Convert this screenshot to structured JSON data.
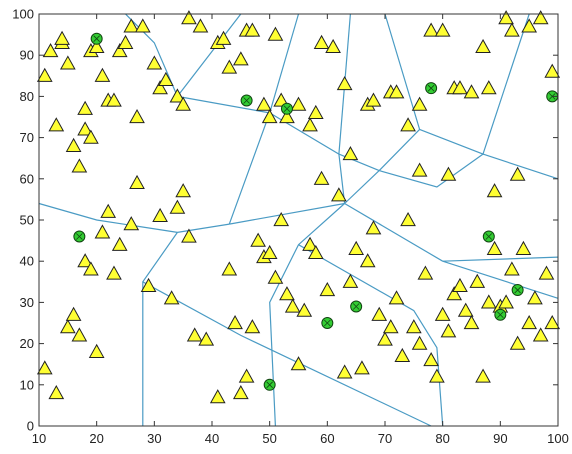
{
  "chart_data": {
    "type": "scatter",
    "xlim": [
      10,
      100
    ],
    "ylim": [
      0,
      100
    ],
    "x_ticks": [
      "10",
      "20",
      "30",
      "40",
      "50",
      "60",
      "70",
      "80",
      "90",
      "100"
    ],
    "y_ticks": [
      "0",
      "10",
      "20",
      "30",
      "40",
      "50",
      "60",
      "70",
      "80",
      "90",
      "100"
    ],
    "grid": false,
    "colors": {
      "triangle_fill": "#ffff33",
      "triangle_edge": "#222222",
      "circle_fill": "#33cc33",
      "circle_edge": "#114411",
      "cell_line": "#4a9bc4",
      "axis": "#333333"
    },
    "series": [
      {
        "marker": "triangle",
        "x": [
          11,
          12,
          14,
          13,
          14,
          15,
          16,
          17,
          18,
          18,
          19,
          19,
          20,
          21,
          22,
          23,
          24,
          25,
          26,
          27,
          28,
          30,
          31,
          32,
          34,
          35,
          36,
          38,
          41,
          42,
          43,
          45,
          46,
          47,
          49,
          50,
          51,
          52,
          53,
          55,
          57,
          58,
          59,
          61,
          63,
          64,
          67,
          68,
          71,
          72,
          74,
          76,
          76,
          78,
          80,
          81,
          82,
          83,
          85,
          87,
          88,
          89,
          91,
          92,
          93,
          95,
          97,
          99,
          11,
          13,
          15,
          16,
          17,
          18,
          19,
          20,
          21,
          22,
          23,
          24,
          26,
          27,
          29,
          31,
          33,
          34,
          35,
          36,
          37,
          39,
          41,
          43,
          44,
          45,
          46,
          47,
          48,
          49,
          50,
          51,
          52,
          53,
          54,
          55,
          56,
          57,
          58,
          59,
          60,
          62,
          63,
          64,
          65,
          66,
          67,
          68,
          69,
          70,
          71,
          72,
          73,
          74,
          75,
          76,
          77,
          78,
          79,
          80,
          81,
          82,
          83,
          84,
          85,
          86,
          87,
          88,
          89,
          90,
          91,
          92,
          93,
          94,
          95,
          96,
          97,
          98,
          99
        ],
        "y": [
          85,
          91,
          93,
          73,
          94,
          88,
          68,
          63,
          77,
          72,
          70,
          91,
          92,
          85,
          79,
          79,
          91,
          93,
          97,
          75,
          97,
          88,
          82,
          84,
          80,
          78,
          99,
          97,
          93,
          94,
          87,
          89,
          96,
          96,
          78,
          75,
          95,
          79,
          75,
          78,
          73,
          76,
          93,
          92,
          83,
          66,
          78,
          79,
          81,
          81,
          73,
          78,
          62,
          96,
          96,
          61,
          82,
          82,
          81,
          92,
          82,
          57,
          99,
          96,
          61,
          97,
          99,
          86,
          14,
          8,
          24,
          27,
          22,
          40,
          38,
          18,
          47,
          52,
          37,
          44,
          49,
          59,
          34,
          51,
          31,
          53,
          57,
          46,
          22,
          21,
          7,
          38,
          25,
          8,
          12,
          24,
          45,
          41,
          42,
          36,
          50,
          32,
          29,
          15,
          28,
          44,
          42,
          60,
          33,
          56,
          13,
          35,
          43,
          14,
          40,
          48,
          27,
          21,
          24,
          31,
          17,
          50,
          24,
          20,
          37,
          16,
          12,
          27,
          23,
          32,
          34,
          28,
          25,
          35,
          12,
          30,
          43,
          29,
          30,
          38,
          20,
          43,
          25,
          31,
          22,
          37,
          25
        ]
      },
      {
        "marker": "circle",
        "x": [
          20,
          17,
          46,
          53,
          60,
          65,
          78,
          88,
          90,
          93,
          99,
          50
        ],
        "y": [
          94,
          46,
          79,
          77,
          25,
          29,
          82,
          46,
          27,
          33,
          80,
          10
        ]
      }
    ],
    "cell_edges": [
      [
        [
          25,
          100
        ],
        [
          30,
          93
        ],
        [
          34,
          80
        ]
      ],
      [
        [
          34,
          80
        ],
        [
          45,
          100
        ]
      ],
      [
        [
          34,
          80
        ],
        [
          50,
          76
        ]
      ],
      [
        [
          50,
          76
        ],
        [
          55,
          100
        ]
      ],
      [
        [
          50,
          76
        ],
        [
          43,
          49
        ]
      ],
      [
        [
          43,
          49
        ],
        [
          34,
          47
        ]
      ],
      [
        [
          34,
          47
        ],
        [
          20,
          50
        ],
        [
          10,
          54
        ]
      ],
      [
        [
          34,
          47
        ],
        [
          28,
          35
        ],
        [
          28,
          0
        ]
      ],
      [
        [
          28,
          35
        ],
        [
          45,
          22
        ],
        [
          78,
          0
        ]
      ],
      [
        [
          50,
          76
        ],
        [
          62,
          66
        ],
        [
          63,
          54
        ]
      ],
      [
        [
          62,
          66
        ],
        [
          64,
          100
        ]
      ],
      [
        [
          62,
          66
        ],
        [
          69,
          62
        ]
      ],
      [
        [
          69,
          62
        ],
        [
          76,
          72
        ],
        [
          70,
          100
        ]
      ],
      [
        [
          76,
          72
        ],
        [
          87,
          66
        ],
        [
          95,
          100
        ]
      ],
      [
        [
          87,
          66
        ],
        [
          100,
          60
        ]
      ],
      [
        [
          69,
          62
        ],
        [
          79,
          58
        ],
        [
          87,
          66
        ]
      ],
      [
        [
          43,
          49
        ],
        [
          63,
          54
        ]
      ],
      [
        [
          63,
          54
        ],
        [
          69,
          62
        ]
      ],
      [
        [
          63,
          54
        ],
        [
          80,
          40
        ]
      ],
      [
        [
          80,
          40
        ],
        [
          100,
          41
        ]
      ],
      [
        [
          80,
          40
        ],
        [
          100,
          31
        ]
      ],
      [
        [
          63,
          54
        ],
        [
          55,
          44
        ],
        [
          50,
          30
        ],
        [
          51,
          0
        ]
      ],
      [
        [
          55,
          44
        ],
        [
          75,
          28
        ],
        [
          79,
          19
        ],
        [
          80,
          0
        ]
      ]
    ]
  }
}
